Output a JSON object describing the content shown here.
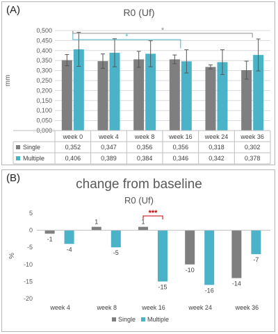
{
  "chart_data": [
    {
      "type": "bar",
      "panel_label": "(A)",
      "title": "R0 (Uf)",
      "ylabel": "mm",
      "ylim": [
        0,
        0.5
      ],
      "yticks": [
        "0,000",
        "0,050",
        "0,100",
        "0,150",
        "0,200",
        "0,250",
        "0,300",
        "0,350",
        "0,400",
        "0,450",
        "0,500"
      ],
      "categories": [
        "week 0",
        "week 4",
        "week 8",
        "week 16",
        "week 24",
        "week 36"
      ],
      "series": [
        {
          "name": "Single",
          "color": "#7f7f7f",
          "values": [
            0.352,
            0.347,
            0.356,
            0.356,
            0.318,
            0.302
          ],
          "labels": [
            "0,352",
            "0,347",
            "0,356",
            "0,356",
            "0,318",
            "0,302"
          ],
          "err": [
            0.028,
            0.036,
            0.04,
            0.022,
            0.01,
            0.045
          ]
        },
        {
          "name": "Multiple",
          "color": "#4bb3c8",
          "values": [
            0.406,
            0.389,
            0.384,
            0.346,
            0.342,
            0.378
          ],
          "labels": [
            "0,406",
            "0,389",
            "0,384",
            "0,346",
            "0,342",
            "0,378"
          ],
          "err": [
            0.085,
            0.07,
            0.065,
            0.058,
            0.062,
            0.08
          ]
        }
      ],
      "significance": [
        {
          "from": "week 0",
          "to": "week 16",
          "label": "*",
          "color": "#4bb3c8"
        },
        {
          "from": "week 0",
          "to": "week 36",
          "label": "*",
          "color": "#8c8c8c"
        }
      ],
      "grid": true,
      "legend": "data-table"
    },
    {
      "type": "bar",
      "panel_label": "(B)",
      "title": "change from baseline",
      "subtitle": "R0 (Uf)",
      "ylabel": "%",
      "ylim": [
        -20,
        5
      ],
      "yticks": [
        "5",
        "0",
        "-5",
        "-10",
        "-15",
        "-20"
      ],
      "categories": [
        "week 4",
        "week 8",
        "week 16",
        "week 24",
        "week 36"
      ],
      "series": [
        {
          "name": "Single",
          "color": "#7f7f7f",
          "values": [
            -1,
            1,
            1,
            -10,
            -14
          ],
          "labels": [
            "-1",
            "1",
            "1",
            "-10",
            "-14"
          ]
        },
        {
          "name": "Multiple",
          "color": "#4bb3c8",
          "values": [
            -4,
            -5,
            -15,
            -16,
            -7
          ],
          "labels": [
            "-4",
            "-5",
            "-15",
            "-16",
            "-7"
          ]
        }
      ],
      "significance": [
        {
          "at": "week 16",
          "label": "***",
          "color": "#c00000"
        }
      ],
      "grid": false,
      "legend": "bottom"
    }
  ]
}
